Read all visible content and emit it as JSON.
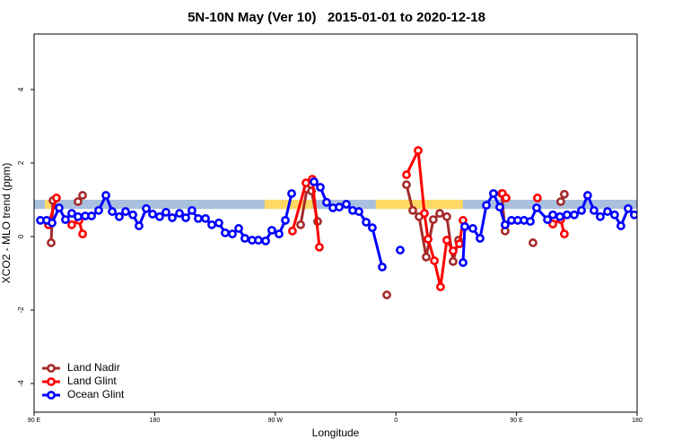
{
  "chart_data": {
    "type": "line",
    "title": "5N-10N May (Ver 10)   2015-01-01 to 2020-12-18",
    "x_label": "Longitude",
    "y_label": "XCO2 - MLO trend (ppm)",
    "xlim": [
      90,
      540
    ],
    "xticks": [
      {
        "value": 90,
        "label": "90 E"
      },
      180,
      {
        "value": 270,
        "label": "90 W"
      },
      {
        "value": 360,
        "label": "0"
      },
      {
        "value": 450,
        "label": "90 E"
      },
      {
        "value": 540,
        "label": "180"
      }
    ],
    "ylim": [
      -4.78,
      5.51
    ],
    "yticks": [
      -4,
      -2,
      0,
      2,
      4
    ],
    "band_ylim": [
      0.75,
      1.0
    ],
    "band_color": "#a9c0de",
    "band_highlights": [
      [
        98,
        106
      ],
      [
        262,
        298
      ],
      [
        345,
        410
      ]
    ],
    "highlight_color": "#ffd966",
    "legend": "bottom left",
    "series": [
      {
        "name": "Land Nadir",
        "color": "#a52a2a",
        "x": [
          102.7,
          104.1,
          null,
          122.8,
          126.2,
          null,
          288.9,
          293.6,
          297.0,
          301.6,
          null,
          353.2,
          null,
          367.9,
          372.6,
          377.3,
          382.6,
          387.9,
          392.7,
          398.0,
          402.7,
          406.7,
          null,
          438.9,
          441.5,
          null,
          462.3,
          null,
          483.0,
          485.7
        ],
        "values": [
          -0.17,
          0.98,
          null,
          0.95,
          1.12,
          null,
          0.32,
          1.29,
          1.24,
          0.41,
          null,
          -1.59,
          null,
          1.41,
          0.71,
          0.54,
          -0.56,
          0.46,
          0.63,
          0.54,
          -0.68,
          -0.1,
          null,
          1.17,
          0.15,
          null,
          -0.17,
          null,
          0.95,
          1.15
        ]
      },
      {
        "name": "Land Glint",
        "color": "#ff0000",
        "x": [
          100.7,
          106.7,
          null,
          118.1,
          123.5,
          126.2,
          null,
          282.8,
          292.9,
          297.6,
          302.9,
          null,
          367.9,
          376.6,
          381.3,
          384.0,
          388.7,
          393.3,
          398.0,
          402.7,
          407.4,
          410.1,
          null,
          439.5,
          442.2,
          null,
          465.6,
          null,
          477.1,
          483.0,
          485.7
        ],
        "values": [
          0.32,
          1.05,
          null,
          0.32,
          0.44,
          0.07,
          null,
          0.15,
          1.46,
          1.56,
          -0.29,
          null,
          1.68,
          2.34,
          0.63,
          -0.07,
          -0.66,
          -1.37,
          -0.1,
          -0.39,
          -0.2,
          0.44,
          null,
          1.17,
          1.05,
          null,
          1.05,
          null,
          0.34,
          0.46,
          0.07
        ]
      },
      {
        "name": "Ocean Glint",
        "color": "#0000ff",
        "x": [
          94.7,
          99.4,
          103.4,
          108.7,
          113.4,
          118.1,
          122.8,
          128.2,
          132.9,
          138.2,
          143.6,
          148.3,
          153.6,
          158.3,
          163.7,
          168.3,
          173.7,
          178.4,
          183.7,
          188.4,
          193.1,
          198.5,
          203.2,
          207.8,
          212.5,
          217.9,
          222.6,
          227.9,
          232.6,
          238.0,
          242.7,
          247.3,
          252.7,
          257.4,
          262.8,
          267.4,
          272.8,
          277.5,
          282.2,
          null,
          298.9,
          303.6,
          308.3,
          313.0,
          317.7,
          323.0,
          327.7,
          332.4,
          337.8,
          342.4,
          349.8,
          null,
          363.2,
          null,
          410.1,
          411.4,
          417.4,
          422.8,
          427.5,
          432.8,
          437.5,
          441.5,
          446.2,
          450.9,
          455.6,
          460.3,
          465.0,
          473.1,
          477.1,
          482.4,
          487.7,
          493.1,
          498.5,
          503.1,
          507.8,
          512.5,
          517.9,
          523.2,
          527.9,
          533.3,
          537.9
        ],
        "values": [
          0.44,
          0.44,
          0.37,
          0.78,
          0.46,
          0.63,
          0.54,
          0.56,
          0.56,
          0.71,
          1.12,
          0.68,
          0.54,
          0.68,
          0.59,
          0.29,
          0.76,
          0.61,
          0.54,
          0.66,
          0.51,
          0.63,
          0.51,
          0.71,
          0.49,
          0.49,
          0.32,
          0.37,
          0.1,
          0.07,
          0.22,
          -0.05,
          -0.1,
          -0.1,
          -0.12,
          0.17,
          0.07,
          0.44,
          1.17,
          null,
          1.49,
          1.34,
          0.93,
          0.78,
          0.8,
          0.88,
          0.71,
          0.68,
          0.39,
          0.24,
          -0.83,
          null,
          -0.37,
          null,
          -0.71,
          0.27,
          0.22,
          -0.05,
          0.85,
          1.17,
          0.8,
          0.32,
          0.44,
          0.44,
          0.44,
          0.41,
          0.78,
          0.46,
          0.59,
          0.54,
          0.59,
          0.59,
          0.71,
          1.12,
          0.71,
          0.54,
          0.68,
          0.59,
          0.29,
          0.76,
          0.59
        ]
      }
    ]
  }
}
